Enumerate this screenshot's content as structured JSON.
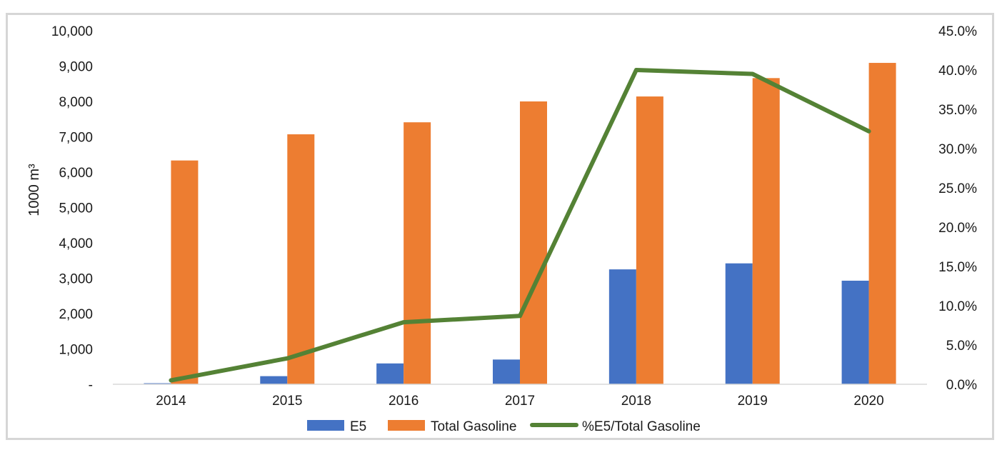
{
  "chart_data": {
    "type": "bar",
    "categories": [
      "2014",
      "2015",
      "2016",
      "2017",
      "2018",
      "2019",
      "2020"
    ],
    "series": [
      {
        "name": "E5",
        "type": "bar",
        "axis": "left",
        "color": "#4472c4",
        "values": [
          30,
          230,
          590,
          700,
          3250,
          3420,
          2930
        ]
      },
      {
        "name": "Total Gasoline",
        "type": "bar",
        "axis": "left",
        "color": "#ed7d31",
        "values": [
          6330,
          7070,
          7410,
          8000,
          8140,
          8660,
          9090
        ]
      },
      {
        "name": "%E5/Total Gasoline",
        "type": "line",
        "axis": "right",
        "color": "#548235",
        "values": [
          0.5,
          3.3,
          7.9,
          8.7,
          40.0,
          39.5,
          32.2
        ]
      }
    ],
    "ylabel": "1000 m³",
    "y_left": {
      "lim": [
        0,
        10000
      ],
      "ticks": [
        "-",
        "1,000",
        "2,000",
        "3,000",
        "4,000",
        "5,000",
        "6,000",
        "7,000",
        "8,000",
        "9,000",
        "10,000"
      ]
    },
    "y_right": {
      "lim": [
        0,
        45
      ],
      "ticks": [
        "0.0%",
        "5.0%",
        "10.0%",
        "15.0%",
        "20.0%",
        "25.0%",
        "30.0%",
        "35.0%",
        "40.0%",
        "45.0%"
      ]
    },
    "grid": false,
    "legend_position": "bottom"
  }
}
